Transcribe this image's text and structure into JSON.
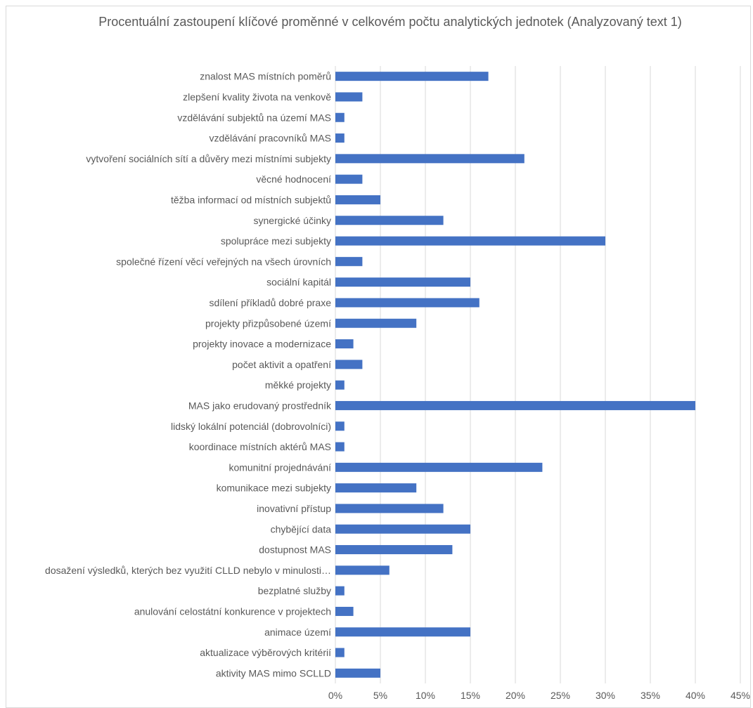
{
  "chart_data": {
    "type": "bar",
    "orientation": "horizontal",
    "title": "Procentuální zastoupení klíčové proměnné v celkovém počtu analytických jednotek (Analyzovaný text 1)",
    "xlabel": "",
    "ylabel": "",
    "xlim": [
      0,
      45
    ],
    "x_ticks": [
      0,
      5,
      10,
      15,
      20,
      25,
      30,
      35,
      40,
      45
    ],
    "x_tick_labels": [
      "0%",
      "5%",
      "10%",
      "15%",
      "20%",
      "25%",
      "30%",
      "35%",
      "40%",
      "45%"
    ],
    "grid": true,
    "bar_color": "#4472c4",
    "categories": [
      "znalost MAS místních poměrů",
      "zlepšení kvality života na venkově",
      "vzdělávání subjektů na území MAS",
      "vzdělávání pracovníků MAS",
      "vytvoření sociálních sítí a důvěry mezi místními subjekty",
      "věcné hodnocení",
      "těžba informací od místních subjektů",
      "synergické účinky",
      "spolupráce mezi subjekty",
      "společné řízení věcí veřejných na všech úrovních",
      "sociální kapitál",
      "sdílení příkladů dobré praxe",
      "projekty přizpůsobené území",
      "projekty inovace a modernizace",
      "počet aktivit a opatření",
      "měkké projekty",
      "MAS jako erudovaný prostředník",
      "lidský lokální potenciál (dobrovolníci)",
      "koordinace místních aktérů MAS",
      "komunitní projednávání",
      "komunikace mezi subjekty",
      "inovativní přístup",
      "chybějící data",
      "dostupnost MAS",
      "dosažení výsledků, kterých bez využití CLLD nebylo v minulosti…",
      "bezplatné služby",
      "anulování celostátní konkurence v projektech",
      "animace území",
      "aktualizace výběrových kritérií",
      "aktivity MAS mimo SCLLD"
    ],
    "values": [
      17,
      3,
      1,
      1,
      21,
      3,
      5,
      12,
      30,
      3,
      15,
      16,
      9,
      2,
      3,
      1,
      40,
      1,
      1,
      23,
      9,
      12,
      15,
      13,
      6,
      1,
      2,
      15,
      1,
      5
    ]
  }
}
